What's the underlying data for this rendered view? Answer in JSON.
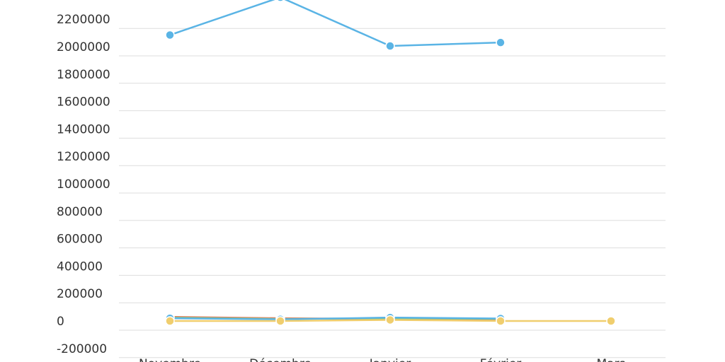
{
  "chart_data": {
    "type": "line",
    "categories": [
      "Novembre",
      "Décembre",
      "Janvier",
      "Février",
      "Mars"
    ],
    "ylim": [
      -200000,
      2400000
    ],
    "yticks": [
      -200000,
      0,
      200000,
      400000,
      600000,
      800000,
      1000000,
      1200000,
      1400000,
      1600000,
      1800000,
      2000000,
      2200000
    ],
    "grid": true,
    "legend": "none",
    "series": [
      {
        "color": "#5ab4e5",
        "values": [
          2085000,
          2360000,
          2005000,
          2030000,
          null
        ]
      },
      {
        "color": "#e8735a",
        "values": [
          30000,
          20000,
          15000,
          10000,
          null
        ]
      },
      {
        "color": "#8ec87a",
        "values": [
          25000,
          15000,
          20000,
          15000,
          null
        ]
      },
      {
        "color": "#5ab4e5",
        "values": [
          20000,
          12000,
          25000,
          18000,
          null
        ]
      },
      {
        "color": "#f0ce6e",
        "values": [
          0,
          0,
          8000,
          0,
          0
        ]
      }
    ]
  }
}
